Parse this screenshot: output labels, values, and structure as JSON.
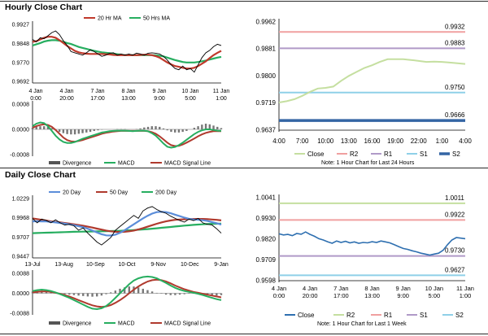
{
  "page": {
    "hourly_title": "Hourly Close Chart",
    "daily_title": "Daily Close Chart"
  },
  "chart_data": [
    {
      "id": "hourly-price",
      "type": "line",
      "legend": [
        "20 Hr MA",
        "50 Hrs MA"
      ],
      "y_ticks": [
        "0.9927",
        "0.9848",
        "0.9770",
        "0.9692"
      ],
      "ylim": [
        0.9692,
        0.9927
      ],
      "x_ticks": [
        [
          "4 Jan",
          "0:00"
        ],
        [
          "4 Jan",
          "20:00"
        ],
        [
          "7 Jan",
          "17:00"
        ],
        [
          "8 Jan",
          "13:00"
        ],
        [
          "9 Jan",
          "9:00"
        ],
        [
          "10 Jan",
          "5:00"
        ],
        [
          "11 Jan",
          "1:00"
        ]
      ],
      "series": [
        {
          "name": "price",
          "color": "#000000",
          "values": [
            0.9865,
            0.9855,
            0.9872,
            0.9868,
            0.988,
            0.9893,
            0.99,
            0.9885,
            0.986,
            0.984,
            0.9815,
            0.981,
            0.9805,
            0.98,
            0.981,
            0.9822,
            0.9815,
            0.9805,
            0.9795,
            0.98,
            0.9808,
            0.981,
            0.98,
            0.9805,
            0.98,
            0.9805,
            0.98,
            0.9808,
            0.9805,
            0.98,
            0.9808,
            0.981,
            0.9808,
            0.9805,
            0.9795,
            0.978,
            0.976,
            0.9745,
            0.974,
            0.9755,
            0.974,
            0.9745,
            0.973,
            0.976,
            0.979,
            0.981,
            0.982,
            0.9835,
            0.9845,
            0.984
          ]
        },
        {
          "name": "20 Hr MA",
          "color": "#c0392b",
          "values": [
            0.9855,
            0.9858,
            0.9865,
            0.9872,
            0.9876,
            0.9876,
            0.9872,
            0.9862,
            0.985,
            0.9838,
            0.9828,
            0.9818,
            0.9812,
            0.9808,
            0.9806,
            0.9805,
            0.9805,
            0.9805,
            0.9805,
            0.9804,
            0.9803,
            0.9801,
            0.98,
            0.98,
            0.98,
            0.98,
            0.98,
            0.98,
            0.9801,
            0.9802,
            0.9802,
            0.98,
            0.9796,
            0.979,
            0.978,
            0.977,
            0.9762,
            0.9755,
            0.9752,
            0.9748,
            0.9745,
            0.9745,
            0.9748,
            0.9755,
            0.9765,
            0.9775,
            0.9788,
            0.98,
            0.981,
            0.9818
          ]
        },
        {
          "name": "50 Hrs MA",
          "color": "#27ae60",
          "values": [
            0.984,
            0.9845,
            0.985,
            0.9856,
            0.986,
            0.9862,
            0.9862,
            0.986,
            0.9855,
            0.985,
            0.9846,
            0.984,
            0.9834,
            0.983,
            0.9826,
            0.9822,
            0.9818,
            0.9815,
            0.9812,
            0.981,
            0.9808,
            0.9806,
            0.9804,
            0.9802,
            0.98,
            0.98,
            0.98,
            0.98,
            0.98,
            0.98,
            0.98,
            0.98,
            0.98,
            0.9798,
            0.9795,
            0.979,
            0.9785,
            0.978,
            0.9776,
            0.9772,
            0.977,
            0.977,
            0.977,
            0.9772,
            0.9775,
            0.9778,
            0.9782,
            0.9786,
            0.979,
            0.9793
          ]
        }
      ]
    },
    {
      "id": "hourly-macd",
      "type": "line",
      "legend": [
        "Divergence",
        "MACD",
        "MACD Signal Line"
      ],
      "y_ticks": [
        "0.0008",
        "0.0000",
        "-0.0008"
      ],
      "ylim": [
        -0.0008,
        0.0008
      ],
      "x_ticks": [],
      "divergence": [
        5e-05,
        8e-05,
        0.0001,
        0.0001,
        8e-05,
        4e-05,
        -2e-05,
        -8e-05,
        -0.00012,
        -0.00015,
        -0.00016,
        -0.00016,
        -0.00014,
        -0.00012,
        -0.0001,
        -8e-05,
        -5e-05,
        -3e-05,
        -1e-05,
        0.0,
        0.0,
        0.0,
        1e-05,
        1e-05,
        1e-05,
        0.0,
        0.0,
        1e-05,
        3e-05,
        6e-05,
        8e-05,
        0.0001,
        0.0001,
        8e-05,
        3e-05,
        -3e-05,
        -8e-05,
        -0.0001,
        -0.0001,
        -8e-05,
        -5e-05,
        0.0,
        5e-05,
        0.0001,
        0.00015,
        0.00018,
        0.00016,
        0.00012,
        8e-05,
        4e-05
      ],
      "series": [
        {
          "name": "MACD",
          "color": "#27ae60",
          "values": [
            0.0001,
            0.00018,
            0.00022,
            0.0002,
            0.0001,
            -5e-05,
            -0.0002,
            -0.00032,
            -0.0004,
            -0.00043,
            -0.00043,
            -0.0004,
            -0.00035,
            -0.0003,
            -0.00026,
            -0.00022,
            -0.00018,
            -0.00014,
            -0.0001,
            -8e-05,
            -6e-05,
            -5e-05,
            -4e-05,
            -4e-05,
            -4e-05,
            -5e-05,
            -6e-05,
            -5e-05,
            -4e-05,
            -4e-05,
            -6e-05,
            -0.00012,
            -0.0002,
            -0.00032,
            -0.00045,
            -0.00055,
            -0.00058,
            -0.00056,
            -0.0005,
            -0.00042,
            -0.00033,
            -0.00024,
            -0.00015,
            -8e-05,
            -3e-05,
            0.0,
            0.0,
            -2e-05,
            -4e-05,
            -5e-05
          ]
        },
        {
          "name": "MACD Signal Line",
          "color": "#b03a2e",
          "values": [
            5e-05,
            0.0001,
            0.00014,
            0.00016,
            0.00014,
            8e-05,
            -2e-05,
            -0.00014,
            -0.00026,
            -0.00034,
            -0.00038,
            -0.00039,
            -0.00037,
            -0.00034,
            -0.0003,
            -0.00026,
            -0.00022,
            -0.00018,
            -0.00014,
            -0.00011,
            -9e-05,
            -7e-05,
            -6e-05,
            -5e-05,
            -5e-05,
            -5e-05,
            -5e-05,
            -5e-05,
            -5e-05,
            -5e-05,
            -6e-05,
            -9e-05,
            -0.00014,
            -0.00022,
            -0.00032,
            -0.00042,
            -0.0005,
            -0.00053,
            -0.00052,
            -0.00048,
            -0.00042,
            -0.00036,
            -0.00029,
            -0.00022,
            -0.00016,
            -0.00011,
            -8e-05,
            -6e-05,
            -6e-05,
            -6e-05
          ]
        }
      ]
    },
    {
      "id": "hourly-levels",
      "type": "line",
      "y_ticks": [
        "0.9962",
        "0.9881",
        "0.9800",
        "0.9719",
        "0.9637"
      ],
      "ylim": [
        0.9637,
        0.9962
      ],
      "x_ticks": [
        "4:00",
        "7:00",
        "10:00",
        "13:00",
        "16:00",
        "19:00",
        "22:00",
        "1:00",
        "4:00"
      ],
      "levels": [
        {
          "name": "R2",
          "value": 0.9932,
          "label": "0.9932",
          "color": "#f0a0a0"
        },
        {
          "name": "R1",
          "value": 0.9883,
          "label": "0.9883",
          "color": "#b09ac8"
        },
        {
          "name": "S1",
          "value": 0.975,
          "label": "0.9750",
          "color": "#8fd0e8"
        },
        {
          "name": "S2",
          "value": 0.9666,
          "label": "0.9666",
          "color": "#3465a4"
        }
      ],
      "series": [
        {
          "name": "Close",
          "color": "#c5dfa0",
          "values": [
            0.972,
            0.9724,
            0.973,
            0.974,
            0.9752,
            0.9762,
            0.9764,
            0.9768,
            0.9785,
            0.98,
            0.9812,
            0.9824,
            0.9832,
            0.9842,
            0.985,
            0.985,
            0.985,
            0.9848,
            0.9845,
            0.9842,
            0.9843,
            0.9842,
            0.984,
            0.9838,
            0.9836
          ]
        }
      ],
      "legend": [
        "Close",
        "R2",
        "R1",
        "S1",
        "S2"
      ],
      "note": "Note: 1 Hour Chart for Last 24 Hours"
    },
    {
      "id": "daily-price",
      "type": "line",
      "legend": [
        "20 Day",
        "50 Day",
        "200 Day"
      ],
      "y_ticks": [
        "1.0229",
        "0.9968",
        "0.9707",
        "0.9447"
      ],
      "ylim": [
        0.9447,
        1.0229
      ],
      "x_ticks": [
        "13-Jul",
        "13-Aug",
        "10-Sep",
        "10-Oct",
        "9-Nov",
        "10-Dec",
        "9-Jan"
      ],
      "series": [
        {
          "name": "price",
          "color": "#000000",
          "values": [
            0.996,
            0.99,
            0.995,
            0.993,
            0.99,
            0.994,
            0.99,
            0.987,
            0.988,
            0.986,
            0.98,
            0.983,
            0.976,
            0.97,
            0.964,
            0.96,
            0.965,
            0.97,
            0.98,
            0.985,
            0.99,
            0.995,
            1.0,
            0.996,
            1.006,
            1.01,
            1.012,
            1.008,
            1.005,
            1.003,
            0.999,
            0.996,
            0.993,
            0.991,
            0.995,
            0.993,
            0.996,
            0.99,
            0.988,
            0.987,
            0.982,
            0.976
          ]
        },
        {
          "name": "20 Day",
          "color": "#5b8dd9",
          "values": [
            0.992,
            0.9922,
            0.992,
            0.9918,
            0.9912,
            0.9905,
            0.9898,
            0.989,
            0.988,
            0.9868,
            0.9855,
            0.984,
            0.982,
            0.9795,
            0.977,
            0.9745,
            0.973,
            0.9728,
            0.974,
            0.9765,
            0.98,
            0.984,
            0.988,
            0.992,
            0.996,
            0.9995,
            1.0025,
            1.0045,
            1.005,
            1.0045,
            1.003,
            1.001,
            0.999,
            0.997,
            0.9955,
            0.9945,
            0.994,
            0.9935,
            0.9925,
            0.991,
            0.9895,
            0.9875
          ]
        },
        {
          "name": "50 Day",
          "color": "#b03a2e",
          "values": [
            0.996,
            0.995,
            0.994,
            0.993,
            0.992,
            0.9912,
            0.9905,
            0.9898,
            0.989,
            0.988,
            0.987,
            0.986,
            0.9848,
            0.9836,
            0.9822,
            0.9808,
            0.9795,
            0.9785,
            0.9778,
            0.9775,
            0.9778,
            0.9785,
            0.9795,
            0.981,
            0.9828,
            0.9848,
            0.9868,
            0.9888,
            0.9905,
            0.992,
            0.9932,
            0.994,
            0.9945,
            0.9948,
            0.995,
            0.9952,
            0.9953,
            0.9953,
            0.995,
            0.9945,
            0.994,
            0.9933
          ]
        },
        {
          "name": "200 Day",
          "color": "#27ae60",
          "values": [
            0.976,
            0.9762,
            0.9764,
            0.9766,
            0.9768,
            0.977,
            0.9772,
            0.9774,
            0.9776,
            0.9778,
            0.978,
            0.9781,
            0.9782,
            0.9783,
            0.9784,
            0.9785,
            0.9786,
            0.9788,
            0.979,
            0.9792,
            0.9795,
            0.9798,
            0.9802,
            0.9806,
            0.981,
            0.9815,
            0.982,
            0.9826,
            0.9832,
            0.9838,
            0.9844,
            0.985,
            0.9856,
            0.9862,
            0.9867,
            0.9872,
            0.9876,
            0.988,
            0.9883,
            0.9886,
            0.9888,
            0.989
          ]
        }
      ]
    },
    {
      "id": "daily-macd",
      "type": "line",
      "legend": [
        "Divergence",
        "MACD",
        "MACD Signal Line"
      ],
      "y_ticks": [
        "0.0088",
        "0.0000",
        "-0.0088"
      ],
      "ylim": [
        -0.0088,
        0.0088
      ],
      "x_ticks": [],
      "divergence": [
        0.0008,
        0.001,
        0.0012,
        0.001,
        0.0006,
        0.0002,
        -0.0002,
        -0.0004,
        -0.0006,
        -0.0008,
        -0.001,
        -0.0012,
        -0.0014,
        -0.0015,
        -0.0014,
        -0.001,
        -0.0004,
        0.0004,
        0.0012,
        0.002,
        0.0026,
        0.003,
        0.003,
        0.0026,
        0.002,
        0.0014,
        0.0008,
        0.0002,
        -0.0002,
        -0.0006,
        -0.0008,
        -0.0008,
        -0.0006,
        -0.0004,
        -0.0002,
        -0.0002,
        -0.0004,
        -0.0006,
        -0.0008,
        -0.001,
        -0.001,
        -0.0008
      ],
      "series": [
        {
          "name": "MACD",
          "color": "#27ae60",
          "values": [
            0.001,
            0.0014,
            0.0016,
            0.0014,
            0.001,
            0.0004,
            -0.0004,
            -0.0012,
            -0.002,
            -0.003,
            -0.004,
            -0.005,
            -0.006,
            -0.0068,
            -0.007,
            -0.0066,
            -0.0056,
            -0.004,
            -0.002,
            0.0,
            0.002,
            0.004,
            0.0056,
            0.0066,
            0.0072,
            0.0074,
            0.0072,
            0.0066,
            0.0056,
            0.0046,
            0.0034,
            0.0024,
            0.0016,
            0.001,
            0.0006,
            0.0002,
            -0.0002,
            -0.0008,
            -0.0014,
            -0.002,
            -0.0026,
            -0.003
          ]
        },
        {
          "name": "MACD Signal Line",
          "color": "#b03a2e",
          "values": [
            0.0004,
            0.0006,
            0.0008,
            0.0008,
            0.0006,
            0.0002,
            -0.0002,
            -0.0008,
            -0.0014,
            -0.0022,
            -0.003,
            -0.0038,
            -0.0046,
            -0.0053,
            -0.0058,
            -0.006,
            -0.0058,
            -0.0052,
            -0.0042,
            -0.003,
            -0.0016,
            0.0,
            0.0016,
            0.003,
            0.0042,
            0.0052,
            0.0058,
            0.006,
            0.0058,
            0.0052,
            0.0044,
            0.0034,
            0.0026,
            0.0018,
            0.0012,
            0.0006,
            0.0002,
            -0.0002,
            -0.0006,
            -0.001,
            -0.0014,
            -0.0018
          ]
        }
      ]
    },
    {
      "id": "daily-levels",
      "type": "line",
      "y_ticks": [
        "1.0041",
        "0.9930",
        "0.9820",
        "0.9709",
        "0.9598"
      ],
      "ylim": [
        0.9598,
        1.0041
      ],
      "x_ticks": [
        [
          "4 Jan",
          "0:00"
        ],
        [
          "4 Jan",
          "20:00"
        ],
        [
          "7 Jan",
          "17:00"
        ],
        [
          "8 Jan",
          "13:00"
        ],
        [
          "9 Jan",
          "9:00"
        ],
        [
          "10 Jan",
          "5:00"
        ],
        [
          "11 Jan",
          "1:00"
        ]
      ],
      "levels": [
        {
          "name": "R2",
          "value": 1.0011,
          "label": "1.0011",
          "color": "#c5dfa0"
        },
        {
          "name": "R1",
          "value": 0.9922,
          "label": "0.9922",
          "color": "#f0a0a0"
        },
        {
          "name": "S1",
          "value": 0.973,
          "label": "0.9730",
          "color": "#b09ac8"
        },
        {
          "name": "S2",
          "value": 0.9627,
          "label": "0.9627",
          "color": "#8fd0e8"
        }
      ],
      "series": [
        {
          "name": "Close",
          "color": "#2e6fb0",
          "values": [
            0.9848,
            0.9842,
            0.9845,
            0.9838,
            0.985,
            0.9846,
            0.9858,
            0.9845,
            0.9835,
            0.9822,
            0.9815,
            0.9805,
            0.9798,
            0.981,
            0.9802,
            0.9808,
            0.98,
            0.9805,
            0.9798,
            0.9802,
            0.98,
            0.9806,
            0.9802,
            0.981,
            0.9805,
            0.98,
            0.979,
            0.978,
            0.977,
            0.9765,
            0.9758,
            0.9752,
            0.9745,
            0.974,
            0.9735,
            0.974,
            0.9745,
            0.976,
            0.979,
            0.9815,
            0.9828,
            0.9825,
            0.9822
          ]
        }
      ],
      "legend": [
        "Close",
        "R2",
        "R1",
        "S1",
        "S2"
      ],
      "note": "Note: 1 Hour Chart for Last 1 Week"
    }
  ]
}
